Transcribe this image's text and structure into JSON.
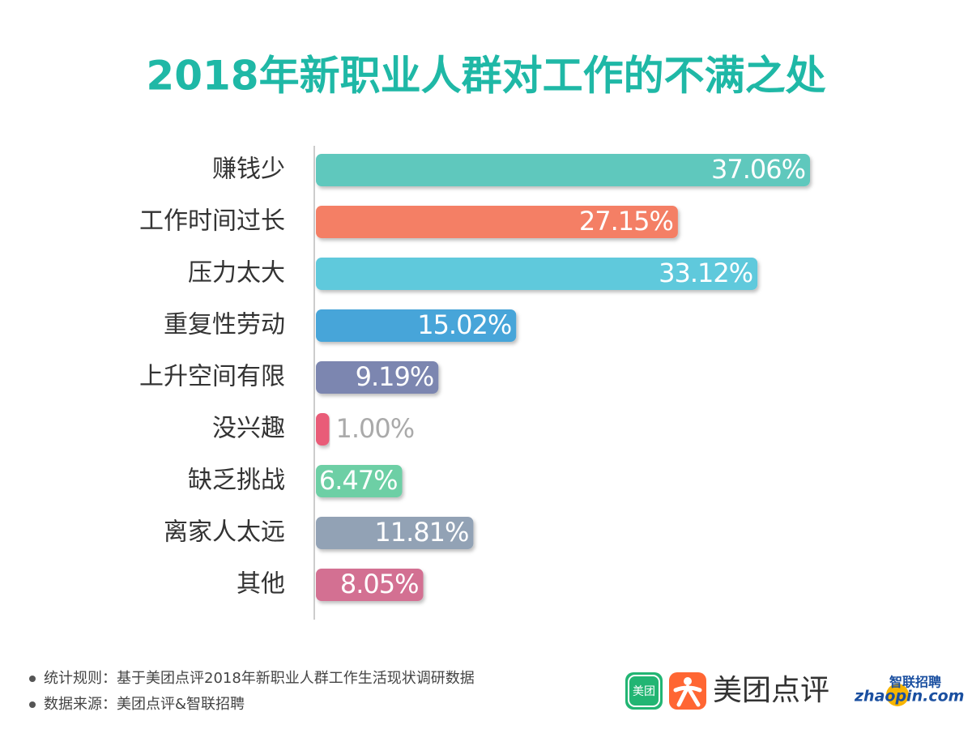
{
  "chart_data": {
    "type": "bar",
    "orientation": "horizontal",
    "title": "2018年新职业人群对工作的不满之处",
    "categories": [
      "赚钱少",
      "工作时间过长",
      "压力太大",
      "重复性劳动",
      "上升空间有限",
      "没兴趣",
      "缺乏挑战",
      "离家人太远",
      "其他"
    ],
    "values": [
      37.06,
      27.15,
      33.12,
      15.02,
      9.19,
      1.0,
      6.47,
      11.81,
      8.05
    ],
    "value_labels": [
      "37.06%",
      "27.15%",
      "33.12%",
      "15.02%",
      "9.19%",
      "1.00%",
      "6.47%",
      "11.81%",
      "8.05%"
    ],
    "colors": [
      "#5ec8bd",
      "#f47f65",
      "#5fc9dc",
      "#46a5d9",
      "#7b86b0",
      "#e95b78",
      "#6dcfa5",
      "#92a2b5",
      "#d36f92"
    ]
  },
  "footer": {
    "notes": [
      "统计规则：基于美团点评2018年新职业人群工作生活现状调研数据",
      "数据来源：美团点评&智联招聘"
    ],
    "logos": [
      "美团",
      "美团点评",
      "智联招聘",
      "zhaopin.com"
    ]
  }
}
